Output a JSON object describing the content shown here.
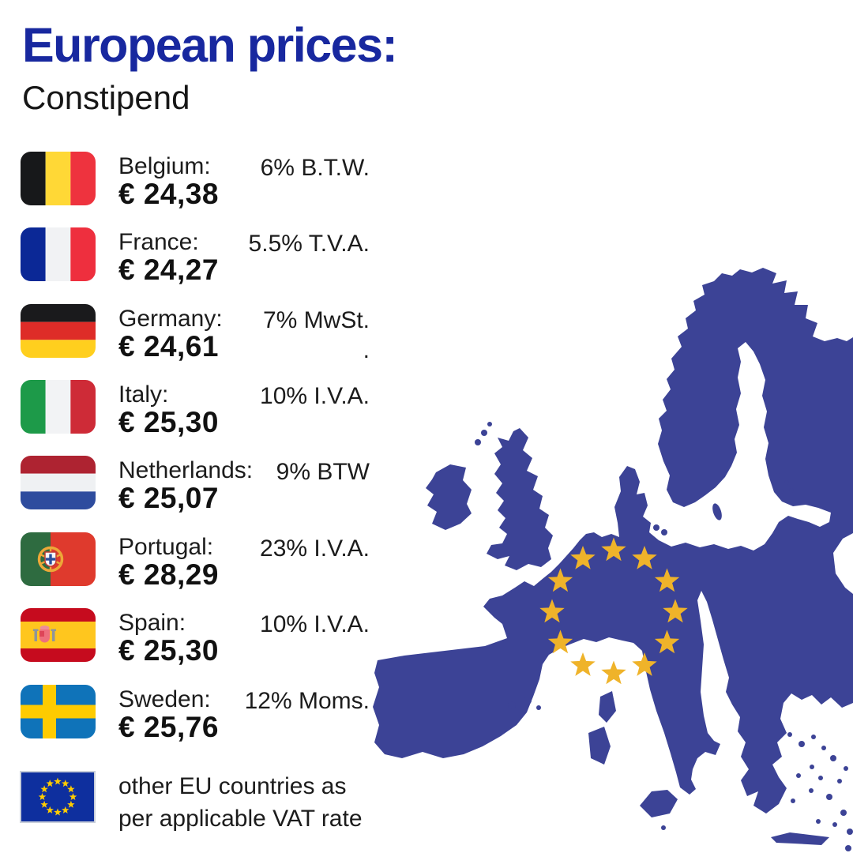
{
  "header": {
    "title": "European prices:",
    "subtitle": "Constipend"
  },
  "rows": [
    {
      "country": "Belgium:",
      "price": "€ 24,38",
      "vat": "6% B.T.W.",
      "flag": "belgium"
    },
    {
      "country": "France:",
      "price": "€ 24,27",
      "vat": "5.5% T.V.A.",
      "flag": "france"
    },
    {
      "country": "Germany:",
      "price": "€ 24,61",
      "vat": "7% MwSt.\n.",
      "flag": "germany"
    },
    {
      "country": "Italy:",
      "price": "€ 25,30",
      "vat": "10% I.V.A.",
      "flag": "italy"
    },
    {
      "country": "Netherlands:",
      "price": "€ 25,07",
      "vat": "9% BTW",
      "flag": "netherlands"
    },
    {
      "country": "Portugal:",
      "price": "€ 28,29",
      "vat": "23% I.V.A.",
      "flag": "portugal"
    },
    {
      "country": "Spain:",
      "price": "€ 25,30",
      "vat": "10% I.V.A.",
      "flag": "spain"
    },
    {
      "country": "Sweden:",
      "price": "€ 25,76",
      "vat": "12% Moms.",
      "flag": "sweden"
    }
  ],
  "footer": {
    "line1": "other EU countries as",
    "line2": "per applicable VAT rate",
    "flag": "eu"
  },
  "colors": {
    "title": "#18289F",
    "body_text": "#1C1C1C",
    "map_land": "#3C4396",
    "map_star": "#EFB32A",
    "eu_flag_blue": "#0E2F9E",
    "eu_flag_star": "#FFCC00"
  },
  "flags": {
    "belgium": {
      "type": "v3",
      "colors": [
        "#17181A",
        "#FFD836",
        "#EE333E"
      ]
    },
    "france": {
      "type": "v3",
      "colors": [
        "#0B2896",
        "#F1F2F4",
        "#EE2F3E"
      ]
    },
    "germany": {
      "type": "h3",
      "colors": [
        "#1A1A1C",
        "#DE2C28",
        "#FFCF1E"
      ]
    },
    "italy": {
      "type": "v3",
      "colors": [
        "#1D9A49",
        "#F2F3F5",
        "#CE2B37"
      ]
    },
    "netherlands": {
      "type": "h3",
      "colors": [
        "#AE2331",
        "#EFF1F3",
        "#2E4C9E"
      ]
    },
    "portugal": {
      "type": "portugal",
      "colors": [
        "#2E6B40",
        "#DF3A2D",
        "#ECA838",
        "#F5F6F7",
        "#2B4E9B"
      ]
    },
    "spain": {
      "type": "spain",
      "colors": [
        "#C60B1E",
        "#FFC61E",
        "#8F959B",
        "#EE6F7D",
        "#DE4558"
      ]
    },
    "sweden": {
      "type": "sweden",
      "colors": [
        "#0F73B9",
        "#FECB00"
      ]
    },
    "eu": {
      "type": "eu",
      "colors": [
        "#0E2F9E",
        "#FFCC00"
      ]
    }
  }
}
